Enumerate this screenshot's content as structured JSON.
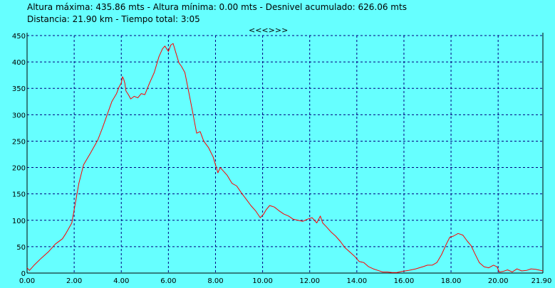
{
  "header": {
    "line1": "Altura máxima: 435.86 mts - Altura mínima: 0.00 mts - Desnivel acumulado: 626.06 mts",
    "line2": "Distancia: 21.90 km - Tiempo total: 3:05",
    "nav": "<<<>>>"
  },
  "chart_data": {
    "type": "line",
    "xlim": [
      0,
      21.9
    ],
    "ylim": [
      0,
      450
    ],
    "grid": true,
    "x_ticks": [
      "0.00",
      "2.00",
      "4.00",
      "6.00",
      "8.00",
      "10.00",
      "12.00",
      "14.00",
      "16.00",
      "18.00",
      "20.00",
      "21.90"
    ],
    "y_ticks": [
      "0",
      "50",
      "100",
      "150",
      "200",
      "250",
      "300",
      "350",
      "400",
      "450"
    ],
    "colors": {
      "line": "#ff0000",
      "grid": "#000080",
      "background": "#66ffff"
    },
    "series": [
      {
        "x": [
          0.0,
          0.1,
          0.3,
          0.6,
          0.9,
          1.2,
          1.5,
          1.65,
          1.9,
          2.1,
          2.2,
          2.4,
          2.7,
          3.0,
          3.2,
          3.4,
          3.6,
          3.8,
          3.9,
          4.0,
          4.05,
          4.1,
          4.15,
          4.2,
          4.3,
          4.4,
          4.55,
          4.7,
          4.85,
          5.0,
          5.2,
          5.4,
          5.6,
          5.75,
          5.85,
          6.0,
          6.1,
          6.2,
          6.3,
          6.45,
          6.55,
          6.7,
          6.9,
          7.05,
          7.2,
          7.35,
          7.5,
          7.7,
          7.9,
          8.1,
          8.2,
          8.3,
          8.5,
          8.7,
          8.9,
          9.1,
          9.3,
          9.5,
          9.7,
          9.9,
          10.05,
          10.15,
          10.3,
          10.5,
          10.7,
          10.9,
          11.1,
          11.3,
          11.5,
          11.7,
          11.9,
          12.1,
          12.3,
          12.45,
          12.55,
          12.7,
          12.9,
          13.1,
          13.3,
          13.5,
          13.7,
          13.9,
          14.1,
          14.3,
          14.5,
          14.7,
          14.9,
          15.1,
          15.3,
          15.5,
          15.7,
          15.9,
          16.2,
          16.5,
          16.8,
          17.0,
          17.2,
          17.4,
          17.6,
          17.8,
          17.95,
          18.1,
          18.3,
          18.5,
          18.7,
          18.85,
          19.0,
          19.2,
          19.4,
          19.6,
          19.8,
          19.95,
          20.05,
          20.2,
          20.4,
          20.6,
          20.8,
          21.0,
          21.2,
          21.4,
          21.6,
          21.8,
          21.9
        ],
        "y": [
          10,
          5,
          15,
          28,
          40,
          55,
          65,
          75,
          95,
          145,
          170,
          205,
          228,
          252,
          275,
          300,
          325,
          340,
          352,
          360,
          372,
          368,
          360,
          345,
          338,
          330,
          335,
          332,
          340,
          338,
          360,
          380,
          410,
          425,
          430,
          420,
          432,
          435,
          420,
          398,
          392,
          380,
          335,
          300,
          265,
          268,
          250,
          238,
          220,
          190,
          200,
          195,
          185,
          170,
          165,
          152,
          140,
          128,
          118,
          105,
          112,
          120,
          128,
          125,
          118,
          112,
          108,
          102,
          100,
          98,
          102,
          105,
          95,
          108,
          95,
          88,
          78,
          70,
          60,
          48,
          40,
          32,
          22,
          20,
          12,
          8,
          5,
          2,
          2,
          1,
          1,
          3,
          5,
          8,
          12,
          15,
          15,
          20,
          35,
          55,
          68,
          70,
          75,
          72,
          60,
          52,
          38,
          20,
          12,
          10,
          15,
          12,
          2,
          3,
          6,
          2,
          8,
          4,
          5,
          8,
          7,
          5,
          4
        ]
      }
    ]
  }
}
